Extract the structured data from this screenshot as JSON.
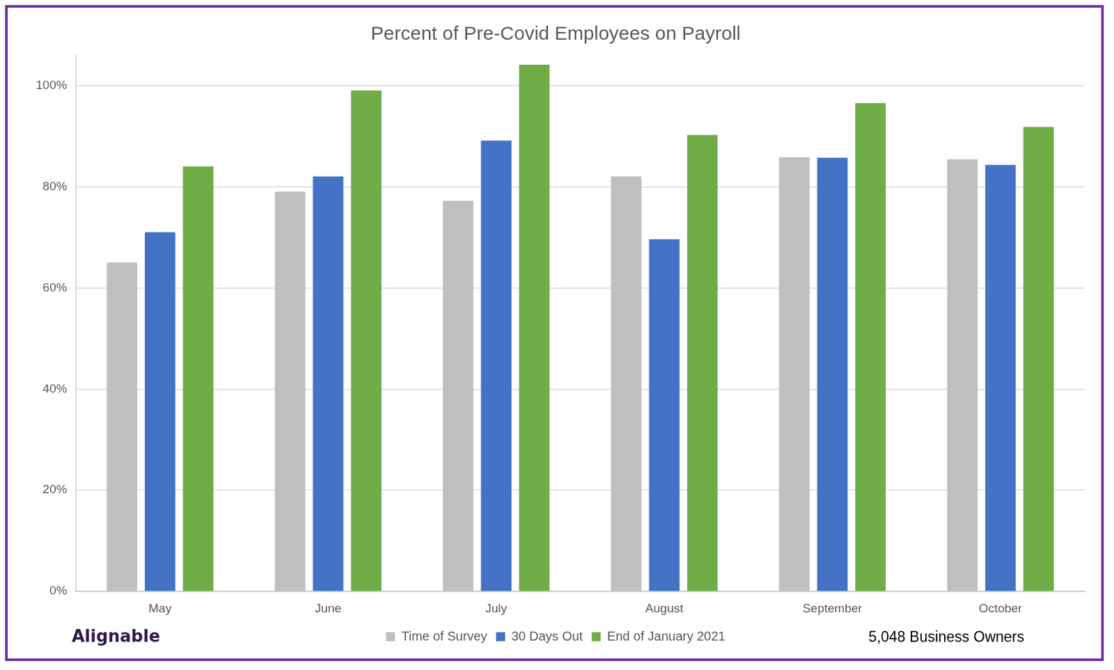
{
  "chart_data": {
    "type": "bar",
    "title": "Percent of Pre-Covid Employees on Payroll",
    "categories": [
      "May",
      "June",
      "July",
      "August",
      "September",
      "October"
    ],
    "series": [
      {
        "name": "Time of Survey",
        "color": "#bfbfbf",
        "values": [
          65,
          79,
          77.2,
          82,
          85.8,
          85.4
        ]
      },
      {
        "name": "30 Days Out",
        "color": "#4472c4",
        "values": [
          71,
          82,
          89.1,
          69.6,
          85.7,
          84.3
        ]
      },
      {
        "name": "End of January 2021",
        "color": "#70ad47",
        "values": [
          84,
          99,
          104.1,
          90.2,
          96.5,
          91.8
        ]
      }
    ],
    "ylim": [
      0,
      106
    ],
    "yticks": [
      {
        "value": 0,
        "label": "0%"
      },
      {
        "value": 20,
        "label": "20%"
      },
      {
        "value": 40,
        "label": "40%"
      },
      {
        "value": 60,
        "label": "60%"
      },
      {
        "value": 80,
        "label": "80%"
      },
      {
        "value": 100,
        "label": "100%"
      }
    ],
    "grid": true,
    "legend": "bottom",
    "annotations": [
      "Alignable",
      "5,048 Business Owners"
    ]
  }
}
